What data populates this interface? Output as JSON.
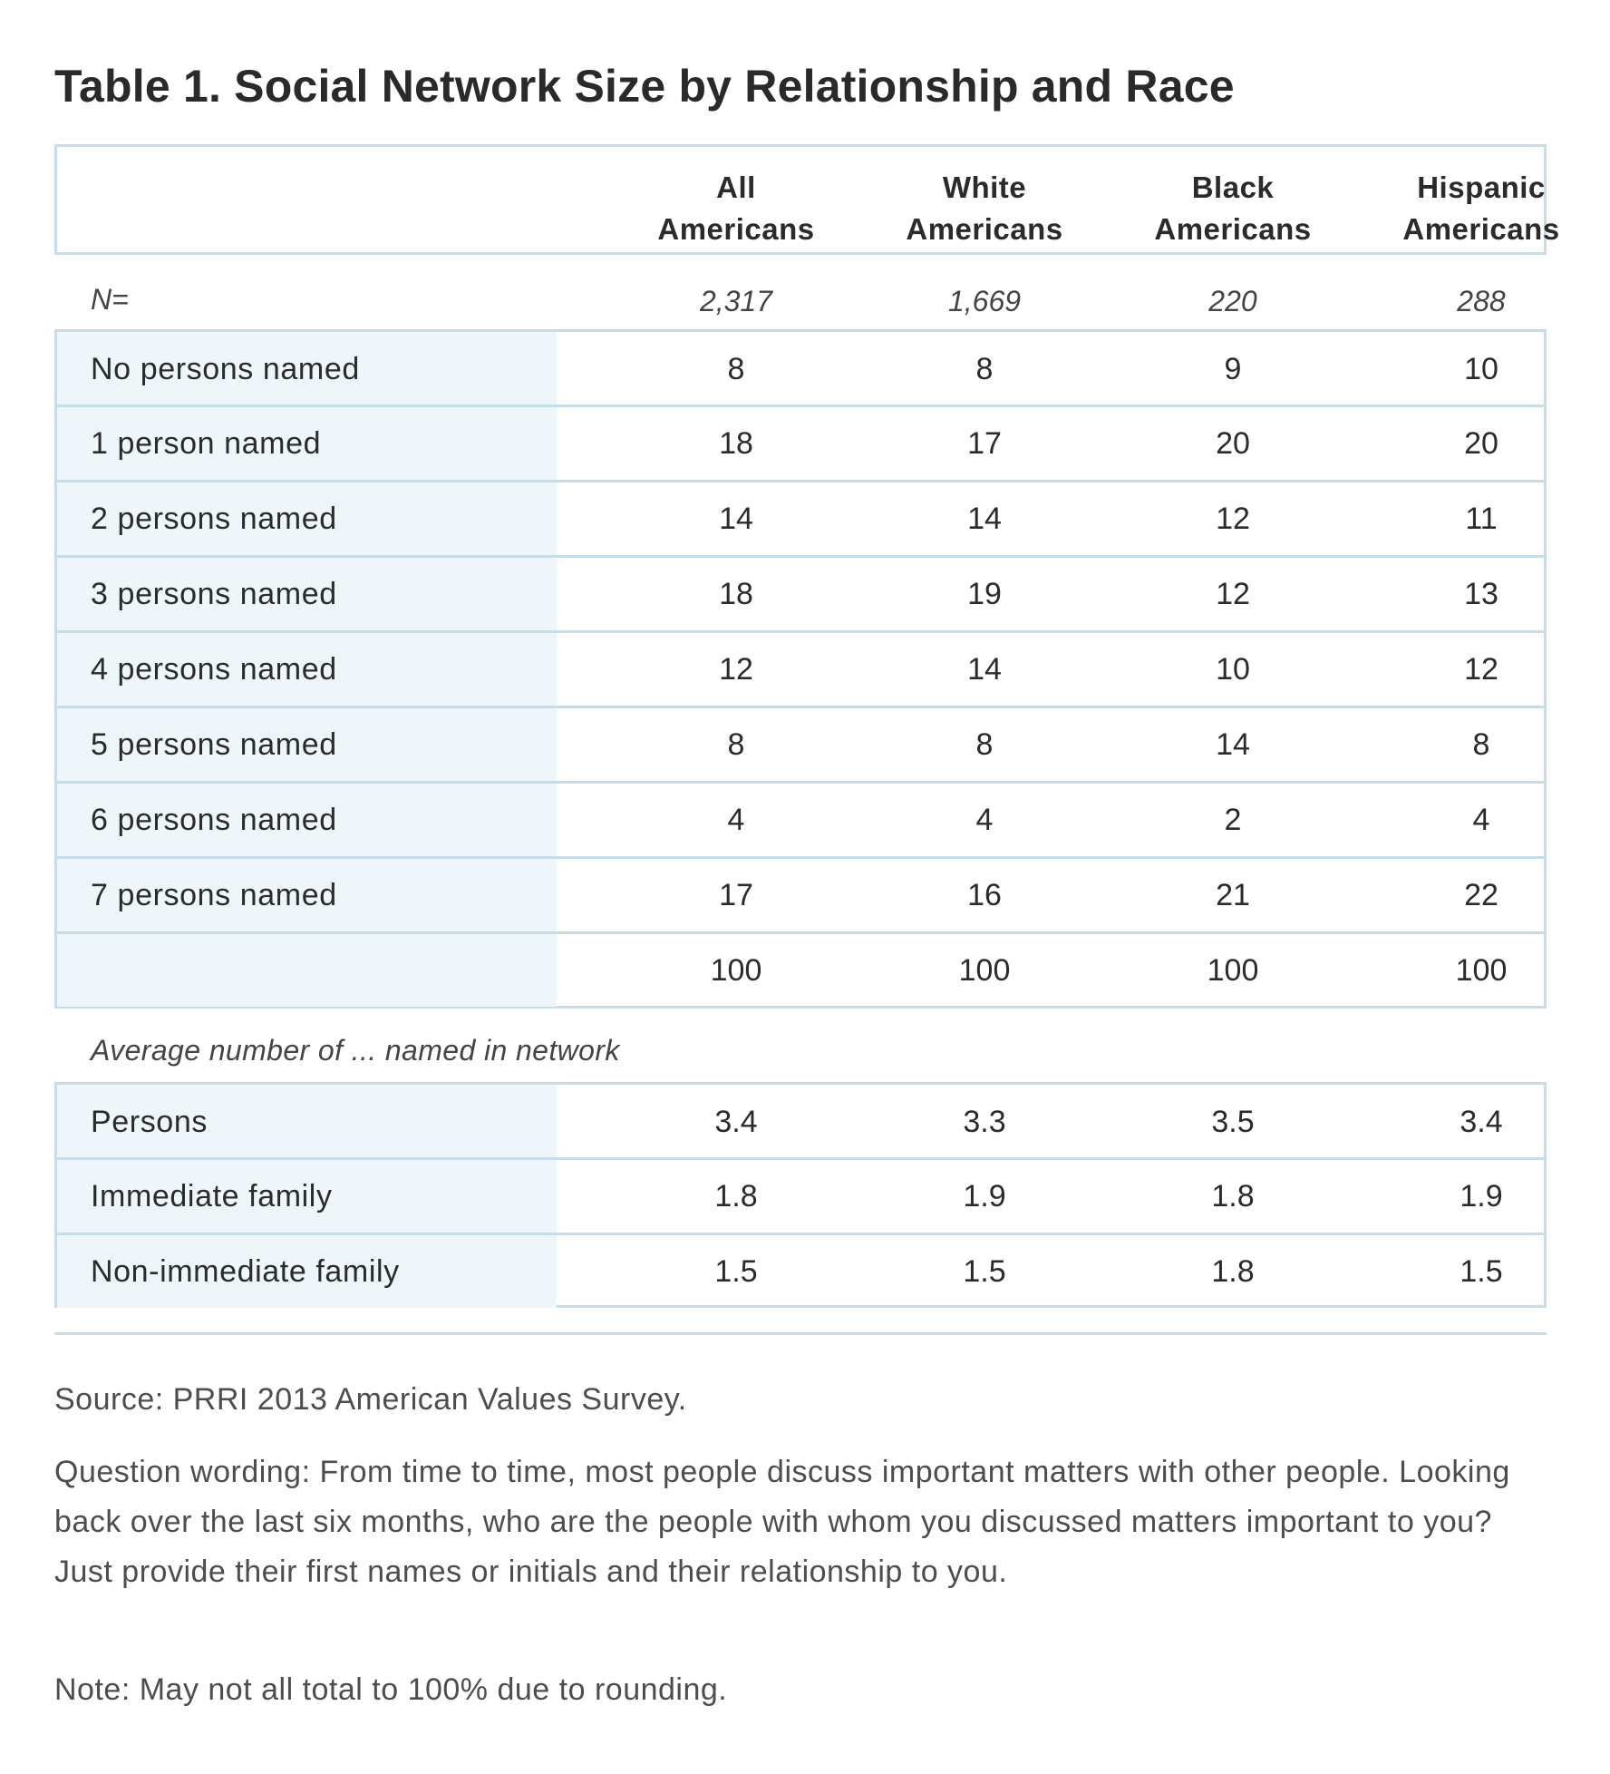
{
  "title": "Table 1. Social Network Size by Relationship and Race",
  "columns": [
    {
      "line1": "All",
      "line2": "Americans"
    },
    {
      "line1": "White",
      "line2": "Americans"
    },
    {
      "line1": "Black",
      "line2": "Americans"
    },
    {
      "line1": "Hispanic",
      "line2": "Americans"
    }
  ],
  "n_row": {
    "label": "N=",
    "values": [
      "2,317",
      "1,669",
      "220",
      "288"
    ]
  },
  "rows": [
    {
      "label": "No persons named",
      "values": [
        "8",
        "8",
        "9",
        "10"
      ]
    },
    {
      "label": "1 person named",
      "values": [
        "18",
        "17",
        "20",
        "20"
      ]
    },
    {
      "label": "2 persons named",
      "values": [
        "14",
        "14",
        "12",
        "11"
      ]
    },
    {
      "label": "3 persons named",
      "values": [
        "18",
        "19",
        "12",
        "13"
      ]
    },
    {
      "label": "4 persons named",
      "values": [
        "12",
        "14",
        "10",
        "12"
      ]
    },
    {
      "label": "5 persons named",
      "values": [
        "8",
        "8",
        "14",
        "8"
      ]
    },
    {
      "label": "6 persons named",
      "values": [
        "4",
        "4",
        "2",
        "4"
      ]
    },
    {
      "label": "7 persons named",
      "values": [
        "17",
        "16",
        "21",
        "22"
      ]
    },
    {
      "label": "",
      "values": [
        "100",
        "100",
        "100",
        "100"
      ]
    }
  ],
  "average_caption": "Average number of ... named in network",
  "average_rows": [
    {
      "label": "Persons",
      "values": [
        "3.4",
        "3.3",
        "3.5",
        "3.4"
      ]
    },
    {
      "label": "Immediate family",
      "values": [
        "1.8",
        "1.9",
        "1.8",
        "1.9"
      ]
    },
    {
      "label": "Non-immediate family",
      "values": [
        "1.5",
        "1.5",
        "1.8",
        "1.5"
      ]
    }
  ],
  "footnotes": {
    "source": "Source: PRRI 2013 American Values Survey.",
    "question": "Question wording: From time to time, most people discuss important matters with other people. Looking back over the last six months, who are the people with whom you discussed matters important to you? Just provide their first names or initials and their relationship to you.",
    "note": "Note: May not all total to 100% due to rounding."
  },
  "colors": {
    "border": "#c6dde9",
    "label_bg": "#eef6fa",
    "text": "#2b2b2b"
  }
}
